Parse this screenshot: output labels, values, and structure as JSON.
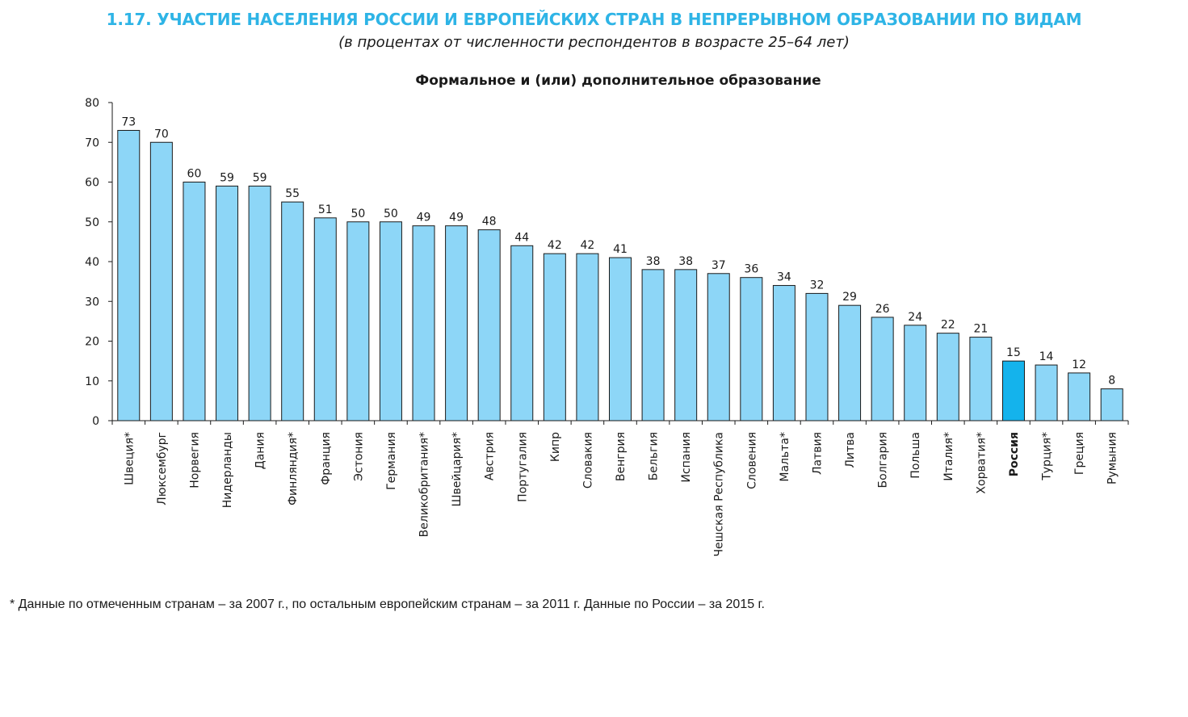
{
  "header": {
    "title": "1.17. УЧАСТИЕ НАСЕЛЕНИЯ РОССИИ И ЕВРОПЕЙСКИХ СТРАН В НЕПРЕРЫВНОМ ОБРАЗОВАНИИ ПО ВИДАМ",
    "subtitle": "(в процентах от численности респондентов в возрасте 25–64 лет)"
  },
  "footnote": "*  Данные по отмеченным странам – за 2007 г., по остальным европейским странам – за 2011 г. Данные по России – за 2015 г.",
  "chart_data": {
    "type": "bar",
    "title": "Формальное и (или) дополнительное образование",
    "xlabel": "",
    "ylabel": "",
    "ylim": [
      0,
      80
    ],
    "yticks": [
      0,
      10,
      20,
      30,
      40,
      50,
      60,
      70,
      80
    ],
    "grid": false,
    "legend": "none",
    "categories": [
      "Швеция*",
      "Люксембург",
      "Норвегия",
      "Нидерланды",
      "Дания",
      "Финляндия*",
      "Франция",
      "Эстония",
      "Германия",
      "Великобритания*",
      "Швейцария*",
      "Австрия",
      "Португалия",
      "Кипр",
      "Словакия",
      "Венгрия",
      "Бельгия",
      "Испания",
      "Чешская Республика",
      "Словения",
      "Мальта*",
      "Латвия",
      "Литва",
      "Болгария",
      "Польша",
      "Италия*",
      "Хорватия*",
      "Россия",
      "Турция*",
      "Греция",
      "Румыния"
    ],
    "values": [
      73,
      70,
      60,
      59,
      59,
      55,
      51,
      50,
      50,
      49,
      49,
      48,
      44,
      42,
      42,
      41,
      38,
      38,
      37,
      36,
      34,
      32,
      29,
      26,
      24,
      22,
      21,
      15,
      14,
      12,
      8
    ],
    "highlight_category": "Россия",
    "colors": {
      "bar": "#8dd6f7",
      "bar_highlight": "#14b3ec",
      "bar_outline": "#1a1a1a",
      "title": "#2eb4e6"
    }
  }
}
